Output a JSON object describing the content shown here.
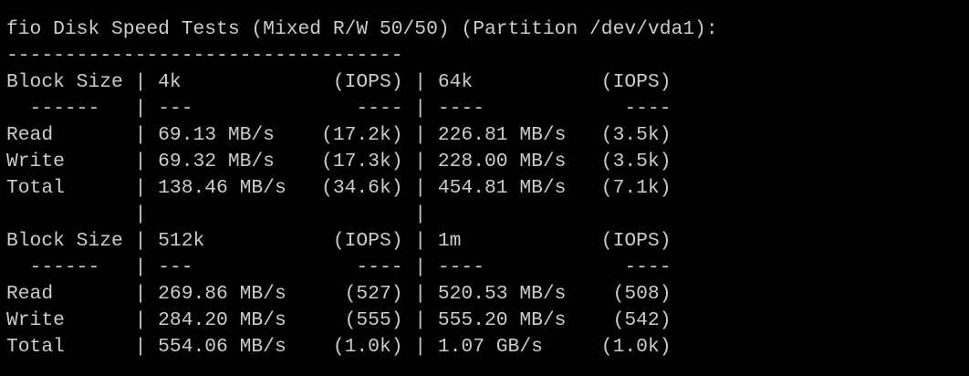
{
  "lines": [
    "fio Disk Speed Tests (Mixed R/W 50/50) (Partition /dev/vda1):",
    "----------------------------------",
    "Block Size | 4k             (IOPS) | 64k           (IOPS)",
    "  ------   | ---              ---- | ----            ----",
    "Read       | 69.13 MB/s    (17.2k) | 226.81 MB/s   (3.5k)",
    "Write      | 69.32 MB/s    (17.3k) | 228.00 MB/s   (3.5k)",
    "Total      | 138.46 MB/s   (34.6k) | 454.81 MB/s   (7.1k)",
    "           |                       |",
    "Block Size | 512k           (IOPS) | 1m            (IOPS)",
    "  ------   | ---              ---- | ----            ----",
    "Read       | 269.86 MB/s     (527) | 520.53 MB/s    (508)",
    "Write      | 284.20 MB/s     (555) | 555.20 MB/s    (542)",
    "Total      | 554.06 MB/s    (1.0k) | 1.07 GB/s     (1.0k)"
  ]
}
